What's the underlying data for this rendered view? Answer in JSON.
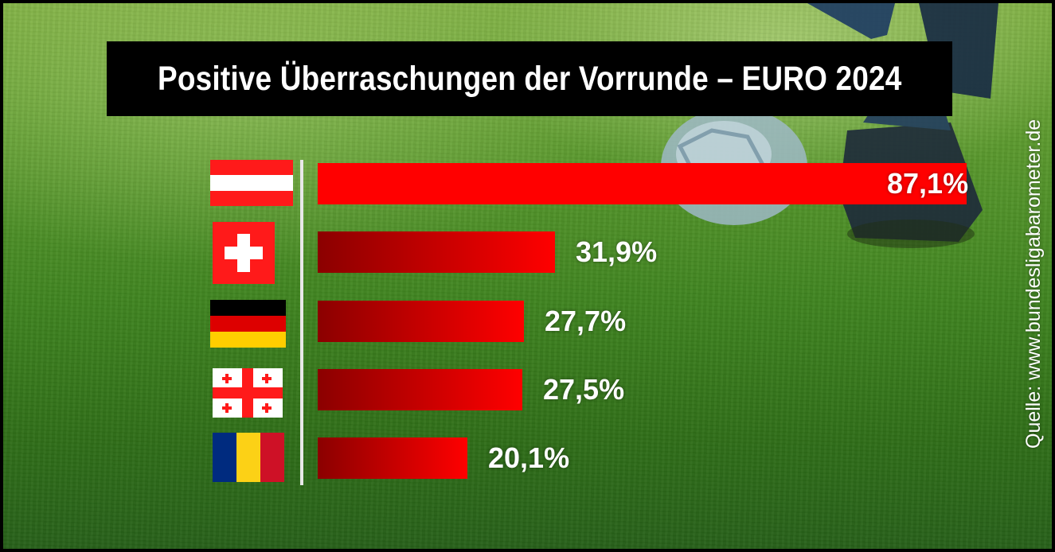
{
  "title": "Positive Überraschungen der Vorrunde – EURO 2024",
  "source": "Quelle: www.bundesligabarometer.de",
  "chart_data": {
    "type": "bar",
    "orientation": "horizontal",
    "title": "Positive Überraschungen der Vorrunde – EURO 2024",
    "categories": [
      "Österreich",
      "Schweiz",
      "Deutschland",
      "Georgien",
      "Rumänien"
    ],
    "category_display": "flags",
    "values": [
      87.1,
      31.9,
      27.7,
      27.5,
      20.1
    ],
    "value_labels": [
      "87,1%",
      "31,9%",
      "27,7%",
      "27,5%",
      "20,1%"
    ],
    "unit": "%",
    "xlim": [
      0,
      87.1
    ],
    "grid": false,
    "legend": "none",
    "bar_color": "#ff0000",
    "bar_gradient_start": "#8b0000"
  },
  "flags": [
    {
      "icon": "austria-flag-icon"
    },
    {
      "icon": "switzerland-flag-icon"
    },
    {
      "icon": "germany-flag-icon"
    },
    {
      "icon": "georgia-flag-icon"
    },
    {
      "icon": "romania-flag-icon"
    }
  ]
}
